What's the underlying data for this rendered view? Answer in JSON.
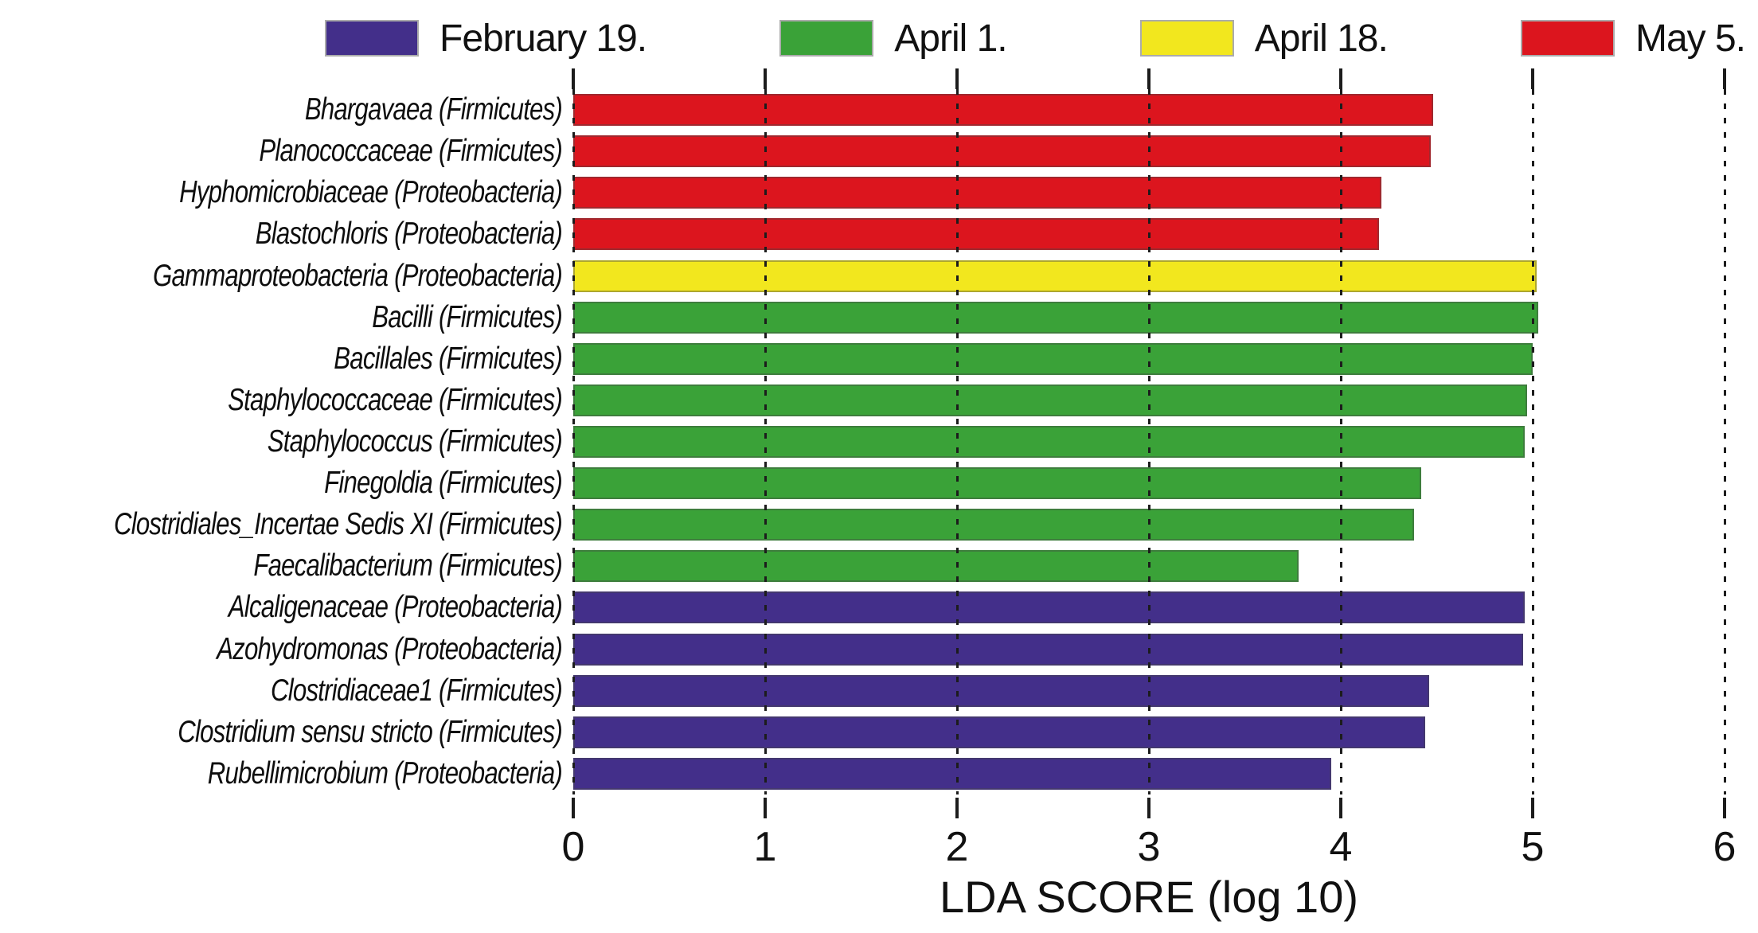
{
  "chart_data": {
    "type": "bar",
    "orientation": "horizontal",
    "xlabel": "LDA SCORE (log 10)",
    "xlim": [
      0,
      6
    ],
    "xticks": [
      0,
      1,
      2,
      3,
      4,
      5,
      6
    ],
    "grid": "dotted-vertical",
    "legend_position": "top",
    "legend": [
      {
        "label": "February 19.",
        "color": "#432F8A"
      },
      {
        "label": "April 1.",
        "color": "#3AA238"
      },
      {
        "label": "April 18.",
        "color": "#F2E71E"
      },
      {
        "label": "May 5.",
        "color": "#DC151E"
      }
    ],
    "bars": [
      {
        "label": "Bhargavaea (Firmicutes)",
        "value": 4.48,
        "group": "May 5.",
        "color": "#DC151E"
      },
      {
        "label": "Planococcaceae (Firmicutes)",
        "value": 4.47,
        "group": "May 5.",
        "color": "#DC151E"
      },
      {
        "label": "Hyphomicrobiaceae (Proteobacteria)",
        "value": 4.21,
        "group": "May 5.",
        "color": "#DC151E"
      },
      {
        "label": "Blastochloris (Proteobacteria)",
        "value": 4.2,
        "group": "May 5.",
        "color": "#DC151E"
      },
      {
        "label": "Gammaproteobacteria (Proteobacteria)",
        "value": 5.02,
        "group": "April 18.",
        "color": "#F2E71E"
      },
      {
        "label": "Bacilli (Firmicutes)",
        "value": 5.03,
        "group": "April 1.",
        "color": "#3AA238"
      },
      {
        "label": "Bacillales (Firmicutes)",
        "value": 5.0,
        "group": "April 1.",
        "color": "#3AA238"
      },
      {
        "label": "Staphylococcaceae (Firmicutes)",
        "value": 4.97,
        "group": "April 1.",
        "color": "#3AA238"
      },
      {
        "label": "Staphylococcus (Firmicutes)",
        "value": 4.96,
        "group": "April 1.",
        "color": "#3AA238"
      },
      {
        "label": "Finegoldia (Firmicutes)",
        "value": 4.42,
        "group": "April 1.",
        "color": "#3AA238"
      },
      {
        "label": "Clostridiales_Incertae Sedis XI (Firmicutes)",
        "value": 4.38,
        "group": "April 1.",
        "color": "#3AA238"
      },
      {
        "label": "Faecalibacterium (Firmicutes)",
        "value": 3.78,
        "group": "April 1.",
        "color": "#3AA238"
      },
      {
        "label": "Alcaligenaceae (Proteobacteria)",
        "value": 4.96,
        "group": "February 19.",
        "color": "#432F8A"
      },
      {
        "label": "Azohydromonas (Proteobacteria)",
        "value": 4.95,
        "group": "February 19.",
        "color": "#432F8A"
      },
      {
        "label": "Clostridiaceae1 (Firmicutes)",
        "value": 4.46,
        "group": "February 19.",
        "color": "#432F8A"
      },
      {
        "label": "Clostridium sensu stricto (Firmicutes)",
        "value": 4.44,
        "group": "February 19.",
        "color": "#432F8A"
      },
      {
        "label": "Rubellimicrobium (Proteobacteria)",
        "value": 3.95,
        "group": "February 19.",
        "color": "#432F8A"
      }
    ]
  }
}
